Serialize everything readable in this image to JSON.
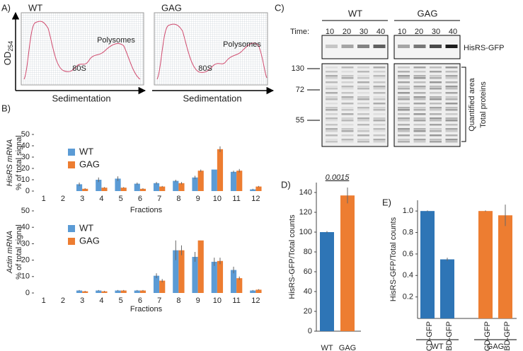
{
  "panel_a": {
    "label": "A)",
    "wt": "WT",
    "gag": "GAG",
    "y_label": "OD",
    "y_label_sub": "254",
    "peak_wt": "Polysomes",
    "peak_gag": "Polysomes",
    "mono_wt": "80S",
    "mono_gag": "80S",
    "x_label_wt": "Sedimentation",
    "x_label_gag": "Sedimentation"
  },
  "panel_c": {
    "label": "C)",
    "wt": "WT",
    "gag": "GAG",
    "time": "Time:",
    "times_wt": [
      "10",
      "20",
      "30",
      "40"
    ],
    "times_gag": [
      "10",
      "20",
      "30",
      "40"
    ],
    "band": "HisRS-GFP",
    "markers": [
      "130",
      "72",
      "55"
    ],
    "bracket1": "Quantified area",
    "bracket2": "Total proteins"
  },
  "chart_data": [
    {
      "type": "bar",
      "panel_label": "B)",
      "ylabel": "HisRS mRNA",
      "ylabel2": "% of total signal",
      "xlabel": "Fractions",
      "categories": [
        "1",
        "2",
        "3",
        "4",
        "5",
        "6",
        "7",
        "8",
        "9",
        "10",
        "11",
        "12"
      ],
      "series": [
        {
          "name": "WT",
          "color": "#5b9bd5",
          "values": [
            0,
            0,
            6,
            10,
            11,
            6.5,
            7,
            9,
            12,
            19,
            17,
            1.5
          ],
          "errors": [
            0,
            0,
            1.5,
            2,
            2,
            1,
            1,
            1,
            1.5,
            0,
            1,
            0.5
          ]
        },
        {
          "name": "GAG",
          "color": "#ed7d31",
          "values": [
            0,
            0,
            2,
            3,
            3,
            2,
            4,
            7,
            18,
            37,
            18,
            4
          ],
          "errors": [
            0,
            0,
            0.5,
            0.5,
            0.5,
            0.5,
            0.5,
            1,
            1,
            2.5,
            1.5,
            0.5
          ]
        }
      ],
      "ylim": [
        0,
        50
      ],
      "yticks": [
        0,
        10,
        20,
        30,
        40,
        50
      ],
      "legend": "upper left"
    },
    {
      "type": "bar",
      "ylabel": "Actin mRNA",
      "ylabel2": "% of total signal",
      "xlabel": "Fractions",
      "categories": [
        "1",
        "2",
        "3",
        "4",
        "5",
        "6",
        "7",
        "8",
        "9",
        "10",
        "11",
        "12"
      ],
      "series": [
        {
          "name": "WT",
          "color": "#5b9bd5",
          "values": [
            0,
            0,
            1.5,
            1.5,
            1.5,
            1.5,
            10.5,
            26,
            22,
            19,
            14,
            1.5
          ],
          "errors": [
            0,
            0,
            0.3,
            0.3,
            0.3,
            0.3,
            1.5,
            6,
            3,
            2.5,
            2,
            0.3
          ]
        },
        {
          "name": "GAG",
          "color": "#ed7d31",
          "values": [
            0,
            0,
            1,
            1,
            1.5,
            1.5,
            7.5,
            26,
            32,
            19.5,
            9,
            2
          ],
          "errors": [
            0,
            0,
            0.3,
            0.3,
            0.3,
            0.3,
            1,
            3,
            0,
            2,
            1,
            0.3
          ]
        }
      ],
      "ylim": [
        0,
        50
      ],
      "yticks": [
        0,
        10,
        20,
        30,
        40,
        50
      ],
      "legend": "upper left"
    },
    {
      "type": "bar",
      "panel_label": "D)",
      "ylabel": "HisRS-GFP/Total counts",
      "categories": [
        "WT",
        "GAG"
      ],
      "values": [
        100,
        137
      ],
      "errors": [
        1,
        8
      ],
      "colors": [
        "#2e75b6",
        "#ed7d31"
      ],
      "annotation": "0.0015",
      "ylim": [
        0,
        150
      ],
      "yticks": [
        0,
        20,
        40,
        60,
        80,
        100,
        120,
        140
      ]
    },
    {
      "type": "bar",
      "panel_label": "E)",
      "ylabel": "HisRS-GFP/Total counts",
      "categories": [
        "CD-GFP",
        "ABD-GFP",
        "CD-GFP",
        "ABD-GFP"
      ],
      "values": [
        1.0,
        0.55,
        1.0,
        0.96
      ],
      "errors": [
        0.005,
        0.015,
        0.005,
        0.1
      ],
      "colors": [
        "#2e75b6",
        "#2e75b6",
        "#ed7d31",
        "#ed7d31"
      ],
      "groups": [
        "WT",
        "GAG"
      ],
      "ylim": [
        0,
        1.1
      ],
      "yticks": [
        0.2,
        0.4,
        0.6,
        0.8,
        {
          "value": 1,
          "label": "1.0"
        }
      ]
    }
  ]
}
